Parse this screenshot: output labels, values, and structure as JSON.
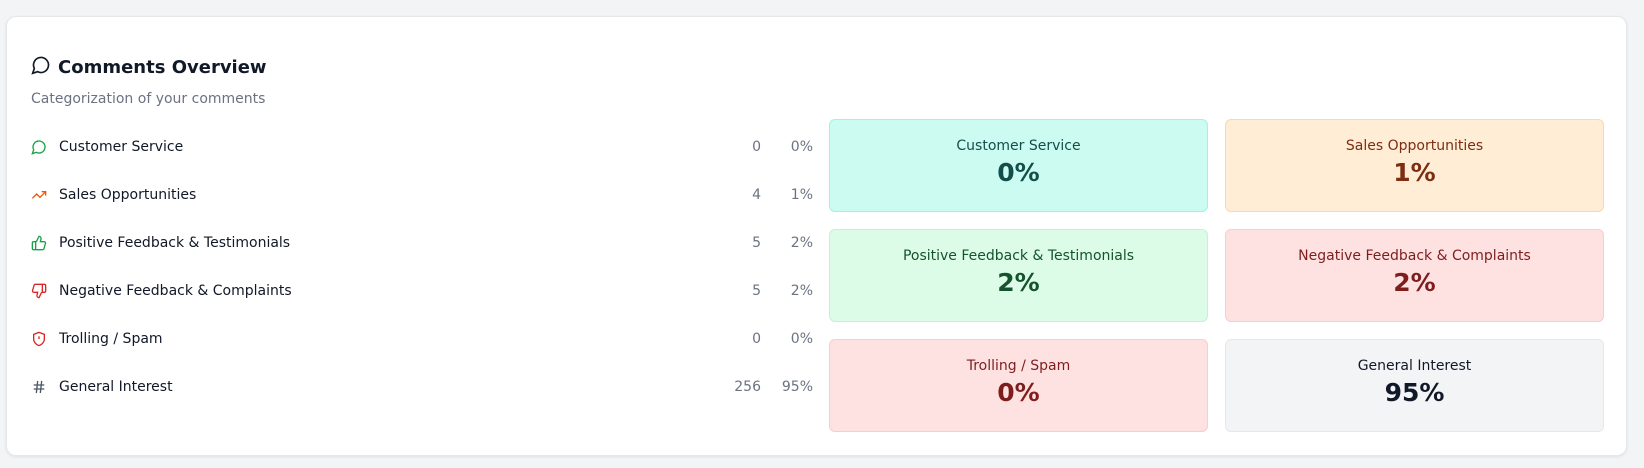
{
  "header": {
    "title": "Comments Overview",
    "subtitle": "Categorization of your comments"
  },
  "categories": [
    {
      "name": "Customer Service",
      "count": 0,
      "percent": "0%"
    },
    {
      "name": "Sales Opportunities",
      "count": 4,
      "percent": "1%"
    },
    {
      "name": "Positive Feedback & Testimonials",
      "count": 5,
      "percent": "2%"
    },
    {
      "name": "Negative Feedback & Complaints",
      "count": 5,
      "percent": "2%"
    },
    {
      "name": "Trolling / Spam",
      "count": 0,
      "percent": "0%"
    },
    {
      "name": "General Interest",
      "count": 256,
      "percent": "95%"
    }
  ]
}
